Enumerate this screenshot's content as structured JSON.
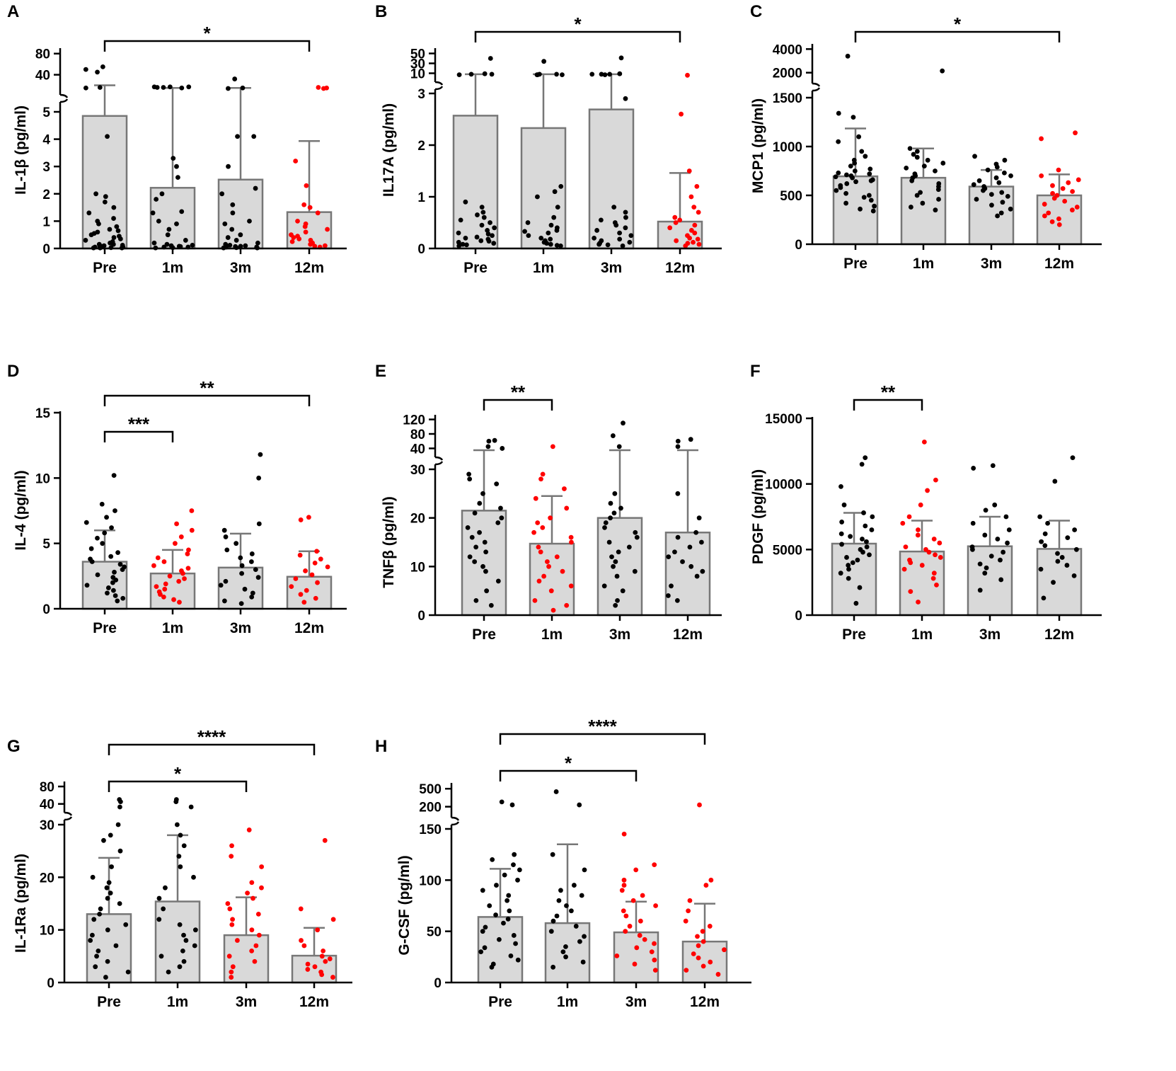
{
  "figure": {
    "colors": {
      "black_dot": "#000000",
      "red_dot": "#ff0000",
      "bar_fill": "#d9d9d9",
      "bar_edge": "#777777"
    }
  },
  "chart_data": [
    {
      "panel": "A",
      "type": "bar",
      "ylabel": "IL-1β (pg/ml)",
      "categories": [
        "Pre",
        "1m",
        "3m",
        "12m"
      ],
      "values": [
        4.85,
        2.22,
        2.52,
        1.33
      ],
      "sd_upper": [
        20,
        15,
        15,
        3.93
      ],
      "red_groups": [
        3
      ],
      "y_lower": {
        "range": [
          0,
          5
        ],
        "ticks": [
          "0",
          "1",
          "2",
          "3",
          "4",
          "5"
        ]
      },
      "y_upper": {
        "range": [
          10,
          85
        ],
        "ticks": [
          "40",
          "80"
        ]
      },
      "points": [
        [
          0.02,
          0.02,
          0.02,
          0.03,
          0.05,
          0.05,
          0.07,
          0.08,
          0.1,
          0.12,
          0.15,
          0.15,
          0.2,
          0.25,
          0.3,
          0.35,
          0.4,
          0.45,
          0.5,
          0.55,
          0.6,
          0.65,
          0.7,
          0.8,
          0.9,
          1.0,
          1.1,
          1.3,
          1.5,
          1.7,
          1.9,
          2.0,
          4.1,
          15,
          16,
          45,
          50,
          55
        ],
        [
          0.02,
          0.03,
          0.05,
          0.05,
          0.07,
          0.08,
          0.1,
          0.12,
          0.15,
          0.2,
          0.3,
          0.5,
          0.7,
          0.9,
          1.0,
          1.3,
          1.35,
          1.8,
          2.0,
          2.6,
          3.0,
          3.3,
          15,
          16,
          16,
          17,
          17,
          17
        ],
        [
          0.02,
          0.02,
          0.03,
          0.05,
          0.05,
          0.07,
          0.08,
          0.1,
          0.12,
          0.15,
          0.2,
          0.3,
          0.4,
          0.5,
          0.7,
          0.9,
          1.0,
          1.3,
          1.6,
          2.0,
          2.2,
          3.0,
          4.1,
          4.1,
          14,
          15,
          32
        ],
        [
          0.05,
          0.08,
          0.1,
          0.15,
          0.2,
          0.25,
          0.3,
          0.35,
          0.4,
          0.45,
          0.5,
          0.6,
          0.7,
          0.8,
          0.9,
          1.0,
          1.3,
          1.5,
          1.6,
          2.3,
          3.2,
          14,
          15,
          16
        ]
      ],
      "significance": [
        {
          "from": 0,
          "to": 3,
          "label": "*"
        }
      ]
    },
    {
      "panel": "B",
      "type": "bar",
      "ylabel": "IL17A (pg/ml)",
      "categories": [
        "Pre",
        "1m",
        "3m",
        "12m"
      ],
      "values": [
        2.57,
        2.33,
        2.69,
        0.52
      ],
      "sd_upper": [
        8,
        8,
        8,
        1.46
      ],
      "red_groups": [
        3
      ],
      "y_lower": {
        "range": [
          0,
          3
        ],
        "ticks": [
          "0",
          "1",
          "2",
          "3"
        ]
      },
      "y_upper": {
        "range": [
          5,
          55
        ],
        "ticks": [
          "10",
          "30",
          "50"
        ]
      },
      "points": [
        [
          0.05,
          0.07,
          0.08,
          0.1,
          0.12,
          0.14,
          0.15,
          0.18,
          0.2,
          0.22,
          0.25,
          0.28,
          0.3,
          0.35,
          0.4,
          0.45,
          0.5,
          0.55,
          0.6,
          0.65,
          0.7,
          0.8,
          0.9,
          7,
          8,
          8,
          9,
          40
        ],
        [
          0.05,
          0.06,
          0.08,
          0.1,
          0.12,
          0.15,
          0.18,
          0.2,
          0.25,
          0.3,
          0.33,
          0.35,
          0.4,
          0.45,
          0.5,
          0.6,
          0.8,
          1.0,
          1.1,
          1.2,
          7,
          7,
          7,
          8,
          8,
          34
        ],
        [
          0.05,
          0.07,
          0.08,
          0.1,
          0.12,
          0.15,
          0.18,
          0.2,
          0.25,
          0.3,
          0.35,
          0.4,
          0.45,
          0.5,
          0.55,
          0.6,
          0.7,
          0.8,
          2.9,
          7,
          8,
          8,
          8,
          9,
          41
        ],
        [
          0.05,
          0.08,
          0.1,
          0.12,
          0.15,
          0.18,
          0.2,
          0.25,
          0.3,
          0.35,
          0.4,
          0.45,
          0.5,
          0.55,
          0.6,
          0.7,
          0.8,
          1.0,
          1.2,
          1.5,
          2.6,
          6
        ]
      ],
      "significance": [
        {
          "from": 0,
          "to": 3,
          "label": "*"
        }
      ]
    },
    {
      "panel": "C",
      "type": "bar",
      "ylabel": "MCP1 (pg/ml)",
      "categories": [
        "Pre",
        "1m",
        "3m",
        "12m"
      ],
      "values": [
        695,
        680,
        590,
        500
      ],
      "sd_upper": [
        1185,
        980,
        760,
        715
      ],
      "red_groups": [
        3
      ],
      "y_lower": {
        "range": [
          0,
          1500
        ],
        "ticks": [
          "0",
          "500",
          "1000",
          "1500"
        ]
      },
      "y_upper": {
        "range": [
          1800,
          4200
        ],
        "ticks": [
          "2000",
          "4000"
        ]
      },
      "points": [
        [
          340,
          360,
          390,
          420,
          450,
          480,
          500,
          520,
          550,
          580,
          600,
          620,
          640,
          650,
          660,
          680,
          690,
          700,
          710,
          720,
          730,
          750,
          770,
          800,
          830,
          860,
          900,
          950,
          1050,
          1100,
          1300,
          1340,
          3400
        ],
        [
          350,
          380,
          420,
          460,
          500,
          530,
          560,
          590,
          620,
          650,
          680,
          700,
          720,
          750,
          780,
          800,
          830,
          860,
          890,
          920,
          950,
          980,
          2150
        ],
        [
          290,
          320,
          360,
          400,
          430,
          460,
          490,
          510,
          530,
          550,
          570,
          590,
          610,
          630,
          650,
          680,
          700,
          730,
          760,
          790,
          820,
          860,
          900
        ],
        [
          200,
          230,
          260,
          290,
          320,
          350,
          380,
          410,
          440,
          470,
          500,
          520,
          540,
          570,
          600,
          630,
          660,
          700,
          760,
          1080,
          1140
        ]
      ],
      "significance": [
        {
          "from": 0,
          "to": 3,
          "label": "*"
        }
      ]
    },
    {
      "panel": "D",
      "type": "bar",
      "ylabel": "IL-4 (pg/ml)",
      "categories": [
        "Pre",
        "1m",
        "3m",
        "12m"
      ],
      "values": [
        3.6,
        2.7,
        3.15,
        2.45
      ],
      "sd_upper": [
        6.0,
        4.5,
        5.75,
        4.4
      ],
      "red_groups": [
        1,
        3
      ],
      "y_lower": {
        "range": [
          0,
          15
        ],
        "ticks": [
          "0",
          "5",
          "10",
          "15"
        ]
      },
      "y_upper": null,
      "points": [
        [
          0.6,
          0.8,
          1.0,
          1.2,
          1.4,
          1.6,
          1.8,
          2.0,
          2.2,
          2.4,
          2.6,
          2.8,
          3.0,
          3.2,
          3.4,
          3.6,
          3.8,
          4.0,
          4.3,
          4.6,
          5.0,
          5.4,
          5.8,
          6.2,
          6.6,
          7.0,
          7.5,
          8.0,
          10.2
        ],
        [
          0.5,
          0.7,
          0.9,
          1.1,
          1.3,
          1.5,
          1.7,
          1.9,
          2.1,
          2.3,
          2.5,
          2.7,
          2.9,
          3.1,
          3.3,
          3.6,
          3.9,
          4.2,
          4.5,
          5.0,
          5.5,
          6.0,
          6.5,
          7.5
        ],
        [
          0.4,
          0.6,
          0.9,
          1.2,
          1.5,
          1.8,
          2.1,
          2.4,
          2.7,
          3.0,
          3.3,
          3.6,
          3.9,
          4.2,
          4.5,
          5.0,
          5.5,
          6.0,
          6.5,
          10.0,
          11.8
        ],
        [
          0.5,
          0.8,
          1.1,
          1.4,
          1.7,
          2.0,
          2.3,
          2.6,
          2.9,
          3.2,
          3.5,
          3.8,
          4.1,
          4.4,
          6.8,
          7.0
        ]
      ],
      "significance": [
        {
          "from": 0,
          "to": 3,
          "label": "**"
        },
        {
          "from": 0,
          "to": 1,
          "label": "***"
        }
      ]
    },
    {
      "panel": "E",
      "type": "bar",
      "ylabel": "TNFβ (pg/ml)",
      "categories": [
        "Pre",
        "1m",
        "3m",
        "12m"
      ],
      "values": [
        21.5,
        14.7,
        20.0,
        17.0
      ],
      "sd_upper": [
        33,
        24.5,
        35,
        33
      ],
      "red_groups": [
        1
      ],
      "y_lower": {
        "range": [
          0,
          30
        ],
        "ticks": [
          "0",
          "10",
          "20",
          "30"
        ]
      },
      "y_upper": {
        "range": [
          35,
          125
        ],
        "ticks": [
          "40",
          "80",
          "120"
        ]
      },
      "points": [
        [
          2,
          3,
          5,
          7,
          9,
          10,
          11,
          12,
          13,
          14,
          15,
          16,
          17,
          18,
          19,
          20,
          21,
          22,
          23,
          25,
          27,
          28,
          29,
          40,
          45,
          60,
          62
        ],
        [
          1,
          2,
          3,
          5,
          6,
          7,
          8,
          9,
          10,
          11,
          12,
          13,
          14,
          15,
          16,
          17,
          18,
          19,
          20,
          22,
          24,
          26,
          28,
          29,
          45
        ],
        [
          2,
          3,
          5,
          6,
          8,
          9,
          10,
          11,
          12,
          13,
          14,
          15,
          16,
          17,
          18,
          19,
          20,
          21,
          22,
          23,
          25,
          45,
          75,
          110
        ],
        [
          3,
          4,
          6,
          8,
          9,
          10,
          11,
          12,
          13,
          14,
          15,
          16,
          17,
          20,
          25,
          45,
          60,
          65
        ]
      ],
      "significance": [
        {
          "from": 0,
          "to": 1,
          "label": "**"
        }
      ]
    },
    {
      "panel": "F",
      "type": "bar",
      "ylabel": "PDGF (pg/ml)",
      "categories": [
        "Pre",
        "1m",
        "3m",
        "12m"
      ],
      "values": [
        5450,
        4850,
        5250,
        5050
      ],
      "sd_upper": [
        7800,
        7200,
        7500,
        7200
      ],
      "red_groups": [
        1
      ],
      "y_lower": {
        "range": [
          0,
          15000
        ],
        "ticks": [
          "0",
          "5000",
          "10000",
          "15000"
        ]
      },
      "y_upper": null,
      "points": [
        [
          900,
          2100,
          2800,
          3200,
          3500,
          3800,
          4000,
          4200,
          4400,
          4600,
          4800,
          5000,
          5200,
          5400,
          5600,
          5800,
          6000,
          6200,
          6500,
          6800,
          7100,
          7500,
          7800,
          8400,
          9800,
          11500,
          12000
        ],
        [
          1000,
          1800,
          2300,
          2800,
          3200,
          3500,
          3800,
          4000,
          4200,
          4400,
          4600,
          4800,
          5000,
          5200,
          5500,
          5800,
          6100,
          6500,
          7000,
          7500,
          8400,
          9500,
          10300,
          13200
        ],
        [
          1900,
          2700,
          3200,
          3600,
          3900,
          4200,
          4500,
          4800,
          5000,
          5200,
          5500,
          5800,
          6100,
          6500,
          7000,
          7500,
          8000,
          8400,
          11200,
          11400
        ],
        [
          1300,
          2500,
          3000,
          3500,
          3800,
          4100,
          4400,
          4700,
          5000,
          5300,
          5600,
          5900,
          6200,
          6500,
          7000,
          7500,
          10200,
          12000
        ]
      ],
      "significance": [
        {
          "from": 0,
          "to": 1,
          "label": "**"
        }
      ]
    },
    {
      "panel": "G",
      "type": "bar",
      "ylabel": "IL-1Ra (pg/ml)",
      "categories": [
        "Pre",
        "1m",
        "3m",
        "12m"
      ],
      "values": [
        13.0,
        15.4,
        9.0,
        5.1
      ],
      "sd_upper": [
        23.7,
        28.0,
        16.2,
        10.4
      ],
      "red_groups": [
        2,
        3
      ],
      "y_lower": {
        "range": [
          0,
          30
        ],
        "ticks": [
          "0",
          "10",
          "20",
          "30"
        ]
      },
      "y_upper": {
        "range": [
          33,
          85
        ],
        "ticks": [
          "40",
          "80"
        ]
      },
      "points": [
        [
          1,
          2,
          3,
          4,
          5,
          6,
          7,
          8,
          9,
          10,
          11,
          12,
          13,
          14,
          15,
          16,
          17,
          18,
          19,
          20,
          22,
          25,
          27,
          28,
          30,
          31,
          45,
          50
        ],
        [
          2,
          3,
          4,
          5,
          6,
          7,
          8,
          9,
          10,
          11,
          12,
          14,
          16,
          18,
          20,
          22,
          24,
          26,
          28,
          30,
          31,
          45,
          50
        ],
        [
          1,
          2,
          3,
          4,
          5,
          6,
          7,
          8,
          9,
          10,
          11,
          12,
          13,
          14,
          15,
          16,
          17,
          18,
          19,
          22,
          24,
          26,
          29
        ],
        [
          1,
          1.5,
          2,
          2.5,
          3,
          3.5,
          4,
          4.5,
          5,
          6,
          7,
          8,
          10,
          12,
          14,
          27
        ]
      ],
      "significance": [
        {
          "from": 0,
          "to": 3,
          "label": "****"
        },
        {
          "from": 0,
          "to": 2,
          "label": "*"
        }
      ]
    },
    {
      "panel": "H",
      "type": "bar",
      "ylabel": "G-CSF (pg/ml)",
      "categories": [
        "Pre",
        "1m",
        "3m",
        "12m"
      ],
      "values": [
        64,
        58,
        49,
        40
      ],
      "sd_upper": [
        111,
        135,
        79,
        77
      ],
      "red_groups": [
        2,
        3
      ],
      "y_lower": {
        "range": [
          0,
          150
        ],
        "ticks": [
          "0",
          "50",
          "100",
          "150"
        ]
      },
      "y_upper": {
        "range": [
          160,
          550
        ],
        "ticks": [
          "200",
          "500"
        ]
      },
      "points": [
        [
          15,
          18,
          22,
          26,
          30,
          34,
          38,
          42,
          46,
          50,
          54,
          58,
          62,
          66,
          70,
          75,
          80,
          85,
          90,
          95,
          100,
          105,
          110,
          115,
          120,
          125,
          230,
          280
        ],
        [
          15,
          20,
          25,
          30,
          35,
          40,
          45,
          50,
          55,
          60,
          65,
          70,
          75,
          80,
          85,
          90,
          95,
          110,
          125,
          230,
          450
        ],
        [
          12,
          18,
          22,
          26,
          30,
          34,
          38,
          42,
          46,
          50,
          55,
          60,
          65,
          70,
          75,
          80,
          85,
          90,
          95,
          100,
          110,
          115,
          145
        ],
        [
          8,
          12,
          16,
          20,
          24,
          28,
          32,
          36,
          40,
          45,
          50,
          55,
          60,
          70,
          80,
          95,
          100,
          230
        ]
      ],
      "significance": [
        {
          "from": 0,
          "to": 3,
          "label": "****"
        },
        {
          "from": 0,
          "to": 2,
          "label": "*"
        }
      ]
    }
  ]
}
